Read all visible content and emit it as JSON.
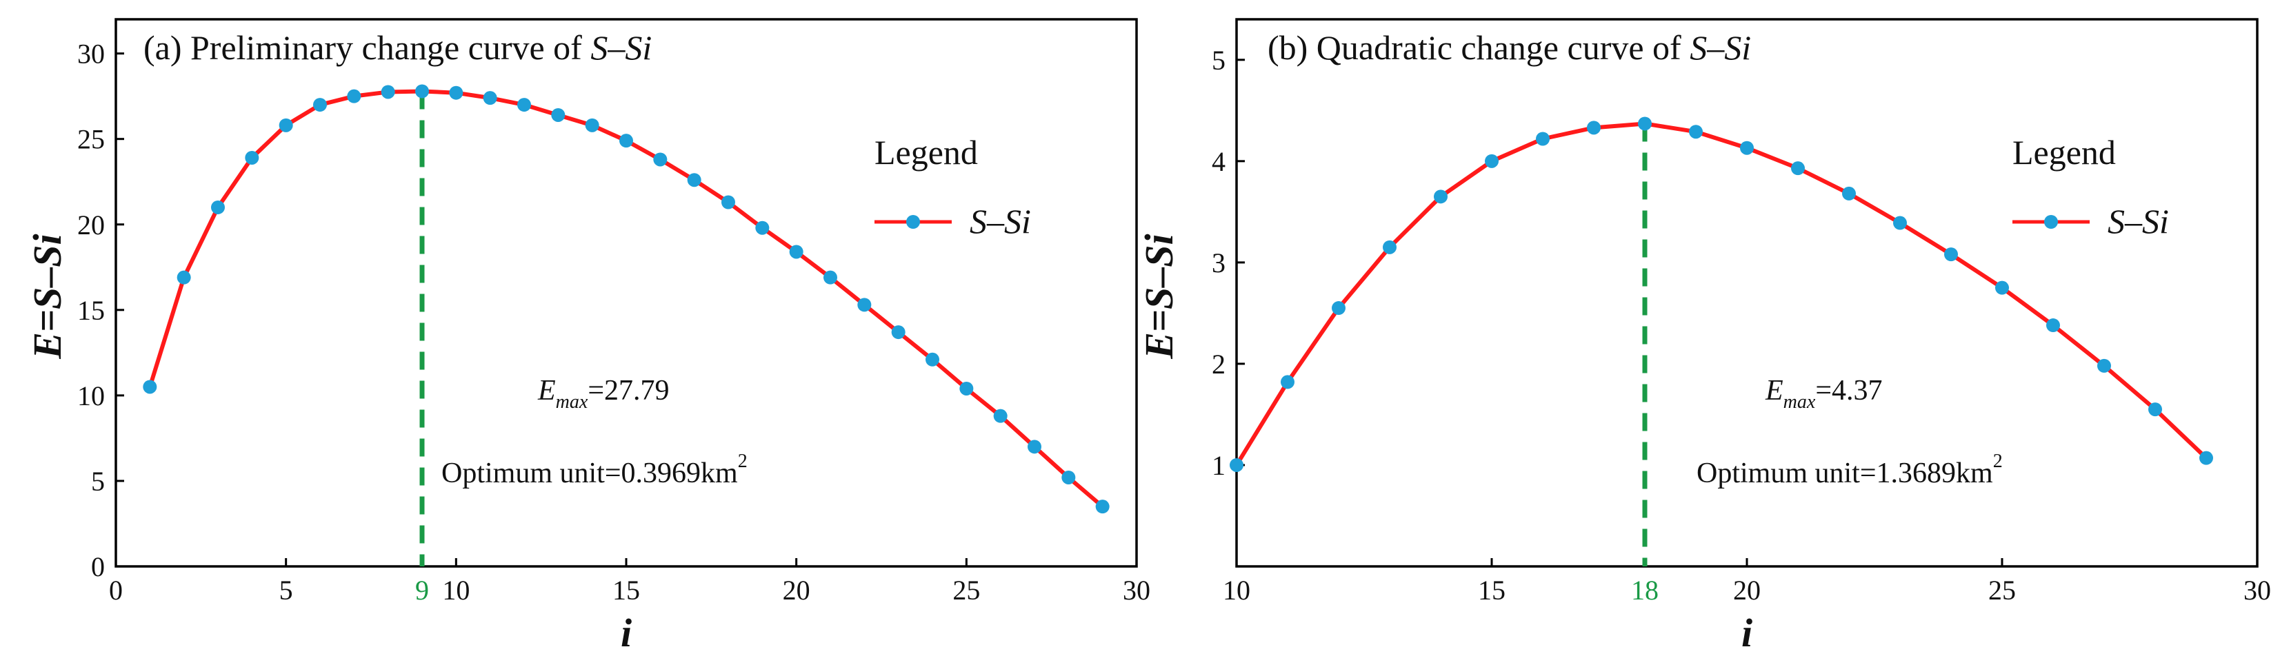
{
  "colors": {
    "line": "#ff1a1a",
    "marker": "#1e9fd8",
    "optimum": "#1a9a46",
    "axis": "#000000"
  },
  "icons": {
    "legend_marker": "line-with-circle-marker-icon"
  },
  "chart_data": [
    {
      "id": "a",
      "type": "line",
      "title_prefix": "(a) Preliminary change curve of ",
      "title_italic": "S–Si",
      "xlabel": "i",
      "ylabel": "E=S–Si",
      "xlim": [
        0,
        30
      ],
      "ylim": [
        0,
        32
      ],
      "xticks": [
        0,
        5,
        10,
        15,
        20,
        25,
        30
      ],
      "xtick_labels": [
        "0",
        "5",
        "10",
        "15",
        "20",
        "25",
        "30"
      ],
      "yticks": [
        0,
        5,
        10,
        15,
        20,
        25,
        30
      ],
      "ytick_labels": [
        "0",
        "5",
        "10",
        "15",
        "20",
        "25",
        "30"
      ],
      "legend_title": "Legend",
      "legend_label": "S–Si",
      "optimum_x": 9,
      "optimum_label": "9",
      "emax_symbol": "E",
      "emax_sub": "max",
      "emax_value": "=27.79",
      "unit_text": "Optimum unit=0.3969km",
      "unit_sup": "2",
      "series": [
        {
          "name": "S–Si",
          "x": [
            1,
            2,
            3,
            4,
            5,
            6,
            7,
            8,
            9,
            10,
            11,
            12,
            13,
            14,
            15,
            16,
            17,
            18,
            19,
            20,
            21,
            22,
            23,
            24,
            25,
            26,
            27,
            28,
            29
          ],
          "y": [
            10.5,
            16.9,
            21.0,
            23.9,
            25.8,
            27.0,
            27.5,
            27.75,
            27.79,
            27.7,
            27.4,
            27.0,
            26.4,
            25.8,
            24.9,
            23.8,
            22.6,
            21.3,
            19.8,
            18.4,
            16.9,
            15.3,
            13.7,
            12.1,
            10.4,
            8.8,
            7.0,
            5.2,
            3.5
          ]
        }
      ]
    },
    {
      "id": "b",
      "type": "line",
      "title_prefix": "(b) Quadratic change curve of ",
      "title_italic": "S–Si",
      "xlabel": "i",
      "ylabel": "E=S–Si",
      "xlim": [
        10,
        30
      ],
      "ylim": [
        0,
        5.4
      ],
      "xticks": [
        10,
        15,
        20,
        25,
        30
      ],
      "xtick_labels": [
        "10",
        "15",
        "20",
        "25",
        "30"
      ],
      "yticks": [
        1,
        2,
        3,
        4,
        5
      ],
      "ytick_labels": [
        "1",
        "2",
        "3",
        "4",
        "5"
      ],
      "legend_title": "Legend",
      "legend_label": "S–Si",
      "optimum_x": 18,
      "optimum_label": "18",
      "emax_symbol": "E",
      "emax_sub": "max",
      "emax_value": "=4.37",
      "unit_text": "Optimum unit=1.3689km",
      "unit_sup": "2",
      "series": [
        {
          "name": "S–Si",
          "x": [
            10,
            11,
            12,
            13,
            14,
            15,
            16,
            17,
            18,
            19,
            20,
            21,
            22,
            23,
            24,
            25,
            26,
            27,
            28,
            29
          ],
          "y": [
            1.0,
            1.82,
            2.55,
            3.15,
            3.65,
            4.0,
            4.22,
            4.33,
            4.37,
            4.29,
            4.13,
            3.93,
            3.68,
            3.39,
            3.08,
            2.75,
            2.38,
            1.98,
            1.55,
            1.07
          ]
        }
      ]
    }
  ]
}
